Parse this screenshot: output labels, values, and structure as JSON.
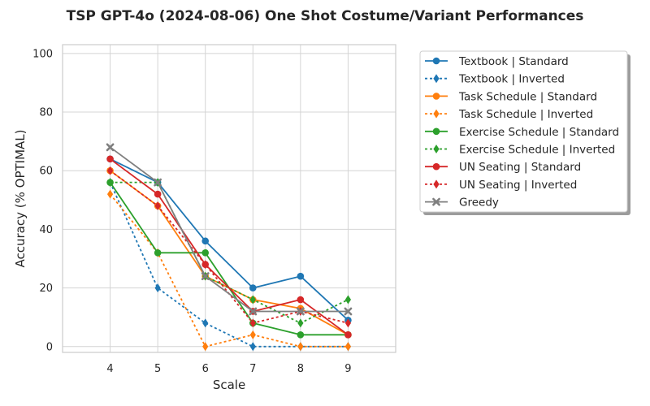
{
  "chart_data": {
    "type": "line",
    "title": "TSP GPT-4o (2024-08-06) One Shot Costume/Variant Performances",
    "xlabel": "Scale",
    "ylabel": "Accuracy (% OPTIMAL)",
    "x": [
      4,
      5,
      6,
      7,
      8,
      9
    ],
    "x_ticks": [
      "4",
      "5",
      "6",
      "7",
      "8",
      "9"
    ],
    "xlim": [
      3,
      10
    ],
    "ylim": [
      -2,
      103
    ],
    "y_ticks": [
      "0",
      "20",
      "40",
      "60",
      "80",
      "100"
    ],
    "grid": true,
    "legend_position": "outside-right",
    "series": [
      {
        "name": "Textbook | Standard",
        "values": [
          64,
          56,
          36,
          20,
          24,
          9
        ],
        "color": "#1f77b4",
        "style": "solid",
        "marker": "circle"
      },
      {
        "name": "Textbook | Inverted",
        "values": [
          56,
          20,
          8,
          0,
          0,
          0
        ],
        "color": "#1f77b4",
        "style": "dotted",
        "marker": "diamond"
      },
      {
        "name": "Task Schedule | Standard",
        "values": [
          60,
          48,
          24,
          16,
          13,
          4
        ],
        "color": "#ff7f0e",
        "style": "solid",
        "marker": "circle"
      },
      {
        "name": "Task Schedule | Inverted",
        "values": [
          52,
          32,
          0,
          4,
          0,
          0
        ],
        "color": "#ff7f0e",
        "style": "dotted",
        "marker": "diamond"
      },
      {
        "name": "Exercise Schedule | Standard",
        "values": [
          56,
          32,
          32,
          8,
          4,
          4
        ],
        "color": "#2ca02c",
        "style": "solid",
        "marker": "circle"
      },
      {
        "name": "Exercise Schedule | Inverted",
        "values": [
          56,
          56,
          24,
          16,
          8,
          16
        ],
        "color": "#2ca02c",
        "style": "dotted",
        "marker": "diamond"
      },
      {
        "name": "UN Seating | Standard",
        "values": [
          64,
          52,
          28,
          12,
          16,
          4
        ],
        "color": "#d62728",
        "style": "solid",
        "marker": "circle"
      },
      {
        "name": "UN Seating | Inverted",
        "values": [
          60,
          48,
          28,
          8,
          12,
          8
        ],
        "color": "#d62728",
        "style": "dotted",
        "marker": "diamond"
      },
      {
        "name": "Greedy",
        "values": [
          68,
          56,
          24,
          12,
          12,
          12
        ],
        "color": "#7f7f7f",
        "style": "solid",
        "marker": "x"
      }
    ]
  }
}
